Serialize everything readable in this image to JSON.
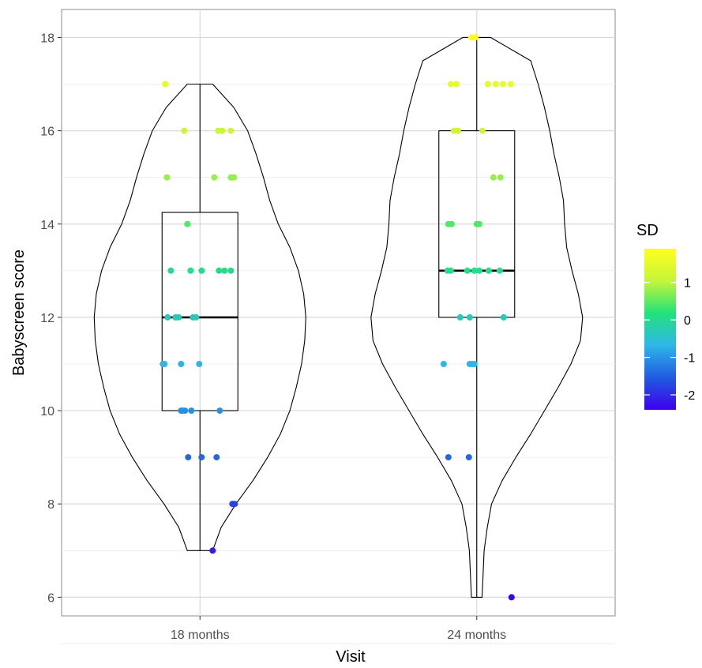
{
  "chart_data": {
    "type": "violin",
    "xlabel": "Visit",
    "ylabel": "Babyscreen score",
    "ylim": [
      5.6,
      18.6
    ],
    "yticks": [
      6,
      8,
      10,
      12,
      14,
      16,
      18
    ],
    "categories": [
      "18 months",
      "24 months"
    ],
    "grid": true,
    "legend": {
      "title": "SD",
      "position": "right",
      "ticks": [
        1,
        0,
        -1,
        -2
      ],
      "min": -2.4,
      "max": 1.9,
      "colors": [
        "#3d00ee",
        "#1f5be0",
        "#2fb6e8",
        "#22e27a",
        "#c4f53a",
        "#ffff1c"
      ]
    },
    "groups": [
      {
        "label": "18 months",
        "box": {
          "q1": 10,
          "median": 12,
          "q3": 14.25,
          "min": 7,
          "max": 17
        },
        "violin_halfwidth": [
          [
            7,
            0.12
          ],
          [
            7.5,
            0.2
          ],
          [
            8,
            0.34
          ],
          [
            8.5,
            0.5
          ],
          [
            9,
            0.64
          ],
          [
            9.5,
            0.76
          ],
          [
            10,
            0.85
          ],
          [
            10.5,
            0.91
          ],
          [
            11,
            0.96
          ],
          [
            11.5,
            0.99
          ],
          [
            12,
            1.0
          ],
          [
            12.5,
            0.98
          ],
          [
            13,
            0.93
          ],
          [
            13.5,
            0.85
          ],
          [
            14,
            0.74
          ],
          [
            14.5,
            0.66
          ],
          [
            15,
            0.6
          ],
          [
            15.5,
            0.53
          ],
          [
            16,
            0.45
          ],
          [
            16.5,
            0.32
          ],
          [
            17,
            0.12
          ]
        ],
        "points": [
          {
            "x": -0.44,
            "y": 17
          },
          {
            "x": -0.2,
            "y": 16
          },
          {
            "x": 0.23,
            "y": 16
          },
          {
            "x": 0.28,
            "y": 16
          },
          {
            "x": 0.39,
            "y": 16
          },
          {
            "x": -0.42,
            "y": 15
          },
          {
            "x": 0.18,
            "y": 15
          },
          {
            "x": 0.39,
            "y": 15
          },
          {
            "x": 0.41,
            "y": 15
          },
          {
            "x": 0.43,
            "y": 15
          },
          {
            "x": -0.16,
            "y": 14
          },
          {
            "x": -0.37,
            "y": 13
          },
          {
            "x": -0.12,
            "y": 13
          },
          {
            "x": 0.02,
            "y": 13
          },
          {
            "x": 0.24,
            "y": 13
          },
          {
            "x": 0.31,
            "y": 13
          },
          {
            "x": 0.39,
            "y": 13
          },
          {
            "x": -0.41,
            "y": 12
          },
          {
            "x": -0.31,
            "y": 12
          },
          {
            "x": -0.27,
            "y": 12
          },
          {
            "x": -0.05,
            "y": 12
          },
          {
            "x": -0.09,
            "y": 12
          },
          {
            "x": -0.47,
            "y": 11
          },
          {
            "x": -0.45,
            "y": 11
          },
          {
            "x": -0.24,
            "y": 11
          },
          {
            "x": -0.01,
            "y": 11
          },
          {
            "x": -0.24,
            "y": 10
          },
          {
            "x": -0.22,
            "y": 10
          },
          {
            "x": -0.19,
            "y": 10
          },
          {
            "x": -0.11,
            "y": 10
          },
          {
            "x": 0.25,
            "y": 10
          },
          {
            "x": -0.15,
            "y": 9
          },
          {
            "x": 0.02,
            "y": 9
          },
          {
            "x": 0.21,
            "y": 9
          },
          {
            "x": 0.41,
            "y": 8
          },
          {
            "x": 0.44,
            "y": 8
          },
          {
            "x": 0.16,
            "y": 7
          }
        ]
      },
      {
        "label": "24 months",
        "box": {
          "q1": 12,
          "median": 13,
          "q3": 16,
          "min": 6,
          "max": 18
        },
        "violin_halfwidth": [
          [
            6,
            0.05
          ],
          [
            6.5,
            0.06
          ],
          [
            7,
            0.07
          ],
          [
            7.5,
            0.1
          ],
          [
            8,
            0.14
          ],
          [
            8.5,
            0.24
          ],
          [
            9,
            0.37
          ],
          [
            9.5,
            0.51
          ],
          [
            10,
            0.64
          ],
          [
            10.5,
            0.77
          ],
          [
            11,
            0.89
          ],
          [
            11.5,
            0.98
          ],
          [
            12,
            1.0
          ],
          [
            12.5,
            0.96
          ],
          [
            13,
            0.9
          ],
          [
            13.5,
            0.85
          ],
          [
            14,
            0.83
          ],
          [
            14.5,
            0.82
          ],
          [
            15,
            0.78
          ],
          [
            15.5,
            0.73
          ],
          [
            16,
            0.69
          ],
          [
            16.5,
            0.64
          ],
          [
            17,
            0.58
          ],
          [
            17.5,
            0.51
          ],
          [
            18,
            0.13
          ]
        ],
        "points": [
          {
            "x": -0.07,
            "y": 18
          },
          {
            "x": -0.02,
            "y": 18
          },
          {
            "x": -0.33,
            "y": 17
          },
          {
            "x": -0.26,
            "y": 17
          },
          {
            "x": 0.14,
            "y": 17
          },
          {
            "x": 0.24,
            "y": 17
          },
          {
            "x": 0.33,
            "y": 17
          },
          {
            "x": 0.43,
            "y": 17
          },
          {
            "x": -0.29,
            "y": 16
          },
          {
            "x": -0.24,
            "y": 16
          },
          {
            "x": 0.07,
            "y": 16
          },
          {
            "x": 0.21,
            "y": 15
          },
          {
            "x": 0.3,
            "y": 15
          },
          {
            "x": -0.36,
            "y": 14
          },
          {
            "x": -0.32,
            "y": 14
          },
          {
            "x": 0.0,
            "y": 14
          },
          {
            "x": 0.03,
            "y": 14
          },
          {
            "x": -0.37,
            "y": 13
          },
          {
            "x": -0.33,
            "y": 13
          },
          {
            "x": -0.12,
            "y": 13
          },
          {
            "x": -0.03,
            "y": 13
          },
          {
            "x": 0.03,
            "y": 13
          },
          {
            "x": 0.15,
            "y": 13
          },
          {
            "x": 0.29,
            "y": 13
          },
          {
            "x": -0.21,
            "y": 12
          },
          {
            "x": -0.09,
            "y": 12
          },
          {
            "x": 0.34,
            "y": 12
          },
          {
            "x": -0.42,
            "y": 11
          },
          {
            "x": -0.09,
            "y": 11
          },
          {
            "x": -0.06,
            "y": 11
          },
          {
            "x": -0.03,
            "y": 11
          },
          {
            "x": -0.36,
            "y": 9
          },
          {
            "x": -0.1,
            "y": 9
          },
          {
            "x": 0.44,
            "y": 6
          }
        ]
      }
    ]
  }
}
